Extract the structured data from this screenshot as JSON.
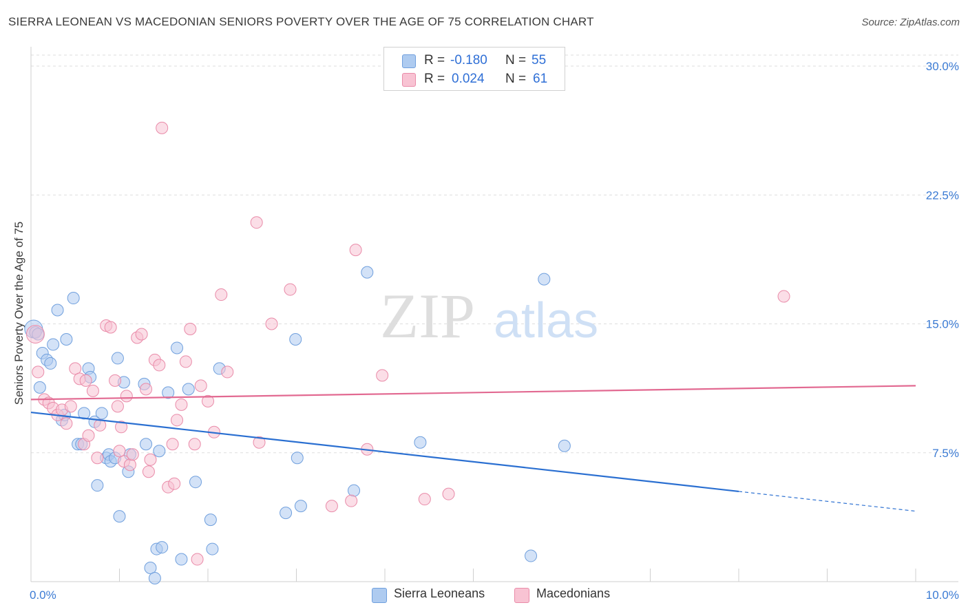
{
  "title": "SIERRA LEONEAN VS MACEDONIAN SENIORS POVERTY OVER THE AGE OF 75 CORRELATION CHART",
  "source": "Source: ZipAtlas.com",
  "watermark": {
    "zip": "ZIP",
    "atlas": "atlas"
  },
  "legend": {
    "r_label": "R =",
    "n_label": "N =",
    "rows": [
      {
        "r": "-0.180",
        "n": "55",
        "color": "#aecbf0",
        "border": "#6f9fdd"
      },
      {
        "r": "0.024",
        "n": "61",
        "color": "#f8c3d3",
        "border": "#e98aa8"
      }
    ]
  },
  "bottom_legend": [
    {
      "name": "Sierra Leoneans",
      "color": "#aecbf0",
      "border": "#6f9fdd"
    },
    {
      "name": "Macedonians",
      "color": "#f8c3d3",
      "border": "#e98aa8"
    }
  ],
  "chart_data": {
    "type": "scatter",
    "title": "SIERRA LEONEAN VS MACEDONIAN SENIORS POVERTY OVER THE AGE OF 75 CORRELATION CHART",
    "xlabel": "",
    "ylabel": "Seniors Poverty Over the Age of 75",
    "xlim": [
      0,
      10
    ],
    "ylim": [
      0,
      30
    ],
    "x_tick_labels": [
      "0.0%",
      "10.0%"
    ],
    "y_ticks": [
      7.5,
      15.0,
      22.5,
      30.0
    ],
    "y_tick_labels": [
      "7.5%",
      "15.0%",
      "22.5%",
      "30.0%"
    ],
    "grid": "horizontal dashed",
    "series": [
      {
        "name": "Sierra Leoneans",
        "color": "#6f9fdd",
        "fill": "#aecbf0",
        "line_color": "#2a6fd1",
        "trend": {
          "x0": 0.0,
          "y0": 9.85,
          "x1": 8.0,
          "y1": 5.25,
          "dash_to": 10.0,
          "dash_y": 4.1
        },
        "points": [
          [
            0.03,
            14.7
          ],
          [
            0.05,
            14.5
          ],
          [
            0.1,
            11.3
          ],
          [
            0.13,
            13.3
          ],
          [
            0.18,
            12.9
          ],
          [
            0.22,
            12.7
          ],
          [
            0.25,
            13.8
          ],
          [
            0.3,
            15.8
          ],
          [
            0.35,
            9.4
          ],
          [
            0.38,
            9.7
          ],
          [
            0.4,
            14.1
          ],
          [
            0.48,
            16.5
          ],
          [
            0.53,
            8.0
          ],
          [
            0.57,
            8.0
          ],
          [
            0.6,
            9.8
          ],
          [
            0.65,
            12.4
          ],
          [
            0.67,
            11.9
          ],
          [
            0.72,
            9.3
          ],
          [
            0.75,
            5.6
          ],
          [
            0.8,
            9.8
          ],
          [
            0.85,
            7.2
          ],
          [
            0.88,
            7.4
          ],
          [
            0.9,
            7.0
          ],
          [
            0.95,
            7.2
          ],
          [
            0.98,
            13.0
          ],
          [
            1.0,
            3.8
          ],
          [
            1.05,
            11.6
          ],
          [
            1.1,
            6.4
          ],
          [
            1.12,
            7.4
          ],
          [
            1.28,
            11.5
          ],
          [
            1.3,
            8.0
          ],
          [
            1.35,
            0.8
          ],
          [
            1.4,
            0.2
          ],
          [
            1.42,
            1.9
          ],
          [
            1.45,
            7.6
          ],
          [
            1.48,
            2.0
          ],
          [
            1.55,
            11.0
          ],
          [
            1.65,
            13.6
          ],
          [
            1.7,
            1.3
          ],
          [
            1.78,
            11.2
          ],
          [
            1.86,
            5.8
          ],
          [
            2.03,
            3.6
          ],
          [
            2.05,
            1.9
          ],
          [
            2.13,
            12.4
          ],
          [
            2.88,
            4.0
          ],
          [
            2.99,
            14.1
          ],
          [
            3.01,
            7.2
          ],
          [
            3.05,
            4.4
          ],
          [
            3.65,
            5.3
          ],
          [
            3.8,
            18.0
          ],
          [
            4.4,
            8.1
          ],
          [
            5.65,
            1.5
          ],
          [
            5.8,
            17.6
          ],
          [
            6.03,
            7.9
          ],
          [
            0.08,
            14.4
          ]
        ]
      },
      {
        "name": "Macedonians",
        "color": "#e98aa8",
        "fill": "#f8c3d3",
        "line_color": "#e26991",
        "trend": {
          "x0": 0.0,
          "y0": 10.6,
          "x1": 10.0,
          "y1": 11.4
        },
        "points": [
          [
            0.05,
            14.4
          ],
          [
            0.08,
            12.2
          ],
          [
            0.15,
            10.6
          ],
          [
            0.2,
            10.4
          ],
          [
            0.25,
            10.1
          ],
          [
            0.3,
            9.7
          ],
          [
            0.35,
            10.0
          ],
          [
            0.4,
            9.2
          ],
          [
            0.45,
            10.2
          ],
          [
            0.5,
            12.4
          ],
          [
            0.55,
            11.8
          ],
          [
            0.6,
            8.0
          ],
          [
            0.62,
            11.7
          ],
          [
            0.65,
            8.5
          ],
          [
            0.7,
            11.1
          ],
          [
            0.75,
            7.2
          ],
          [
            0.78,
            9.1
          ],
          [
            0.85,
            14.9
          ],
          [
            0.9,
            14.8
          ],
          [
            0.95,
            11.7
          ],
          [
            0.98,
            10.2
          ],
          [
            1.02,
            9.0
          ],
          [
            1.05,
            7.0
          ],
          [
            1.08,
            10.8
          ],
          [
            1.12,
            6.8
          ],
          [
            1.15,
            7.4
          ],
          [
            1.2,
            14.2
          ],
          [
            1.25,
            14.4
          ],
          [
            1.3,
            11.2
          ],
          [
            1.33,
            6.4
          ],
          [
            1.35,
            7.1
          ],
          [
            1.4,
            12.9
          ],
          [
            1.45,
            12.6
          ],
          [
            1.48,
            26.4
          ],
          [
            1.55,
            5.5
          ],
          [
            1.6,
            8.0
          ],
          [
            1.62,
            5.7
          ],
          [
            1.65,
            9.4
          ],
          [
            1.7,
            10.3
          ],
          [
            1.75,
            12.8
          ],
          [
            1.8,
            14.7
          ],
          [
            1.85,
            8.0
          ],
          [
            1.88,
            1.3
          ],
          [
            1.92,
            11.4
          ],
          [
            2.0,
            10.5
          ],
          [
            2.07,
            8.7
          ],
          [
            2.15,
            16.7
          ],
          [
            2.22,
            12.2
          ],
          [
            2.55,
            20.9
          ],
          [
            2.58,
            8.1
          ],
          [
            2.72,
            15.0
          ],
          [
            2.93,
            17.0
          ],
          [
            3.4,
            4.4
          ],
          [
            3.62,
            4.7
          ],
          [
            3.67,
            19.3
          ],
          [
            3.8,
            7.7
          ],
          [
            3.97,
            12.0
          ],
          [
            4.45,
            4.8
          ],
          [
            4.72,
            5.1
          ],
          [
            8.51,
            16.6
          ],
          [
            1.0,
            7.6
          ]
        ]
      }
    ]
  }
}
